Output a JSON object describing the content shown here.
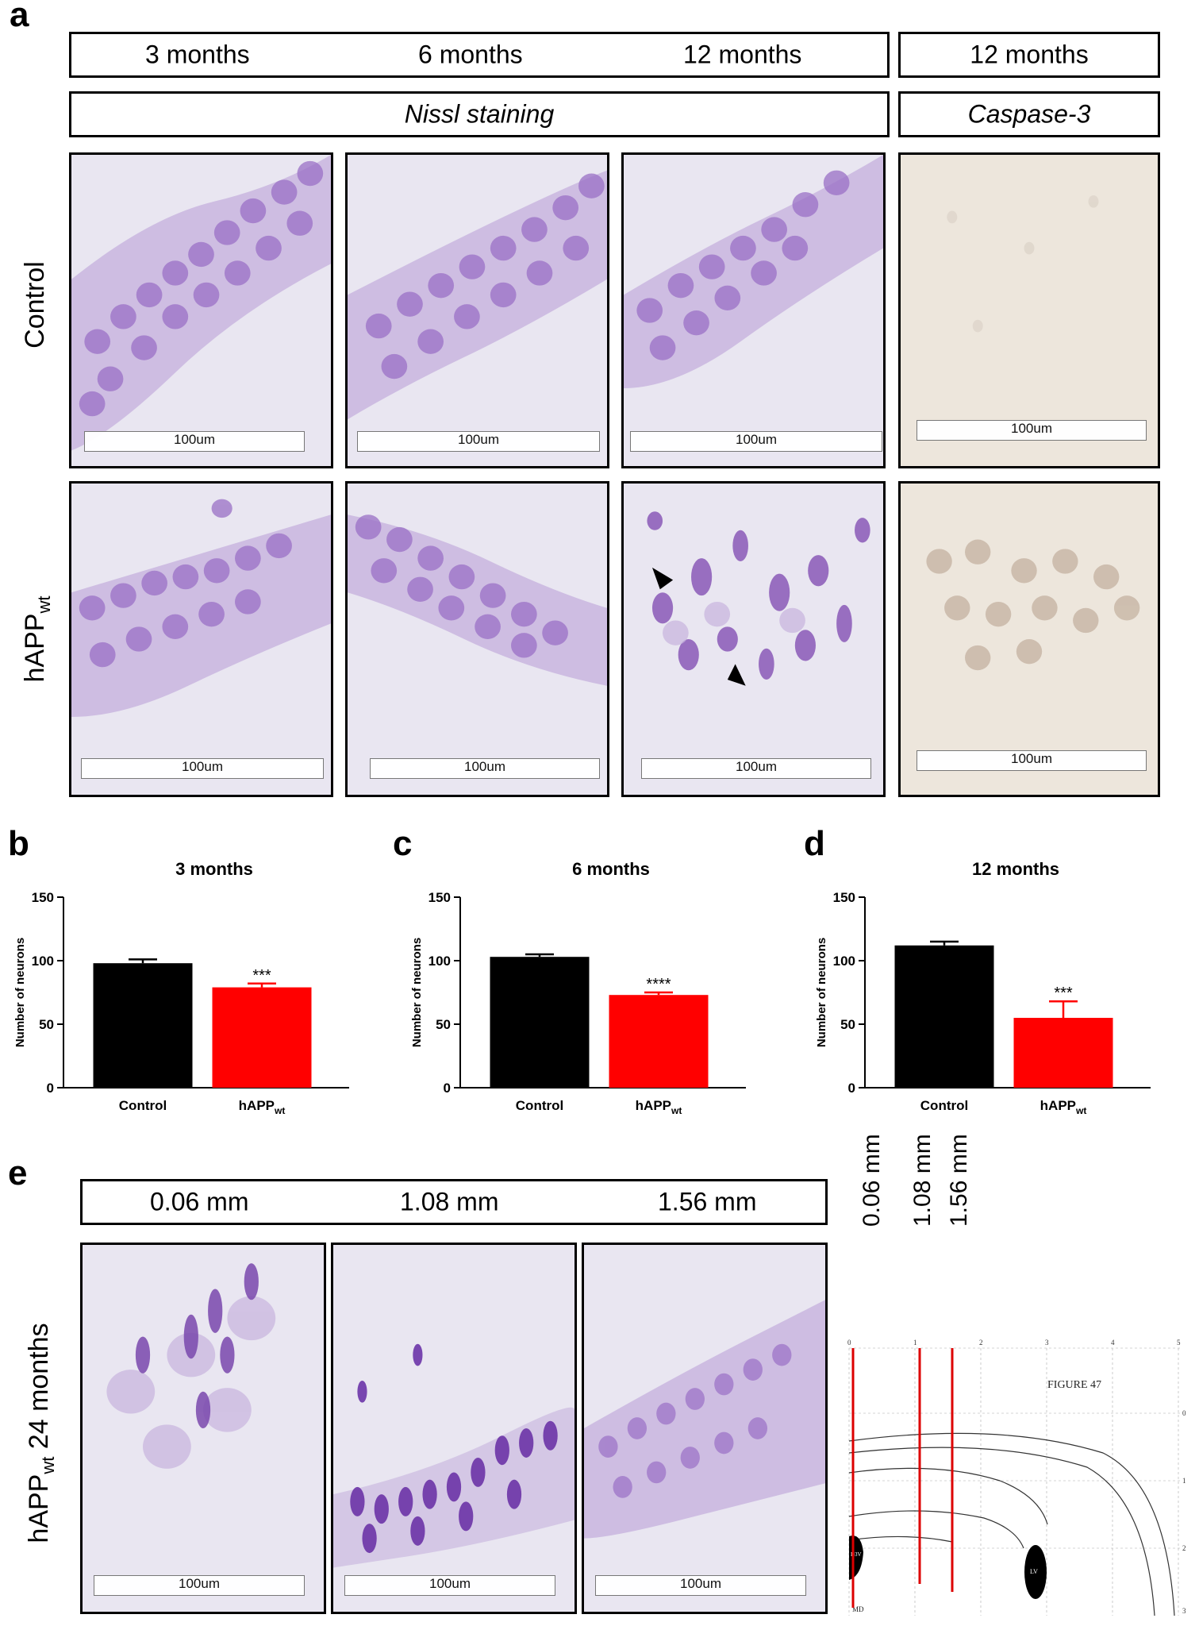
{
  "panel_a": {
    "letter": "a",
    "header_ages": [
      "3 months",
      "6 months",
      "12 months"
    ],
    "header_caspase_age": "12 months",
    "stain_nissl": "Nissl staining",
    "stain_caspase": "Caspase-3",
    "row_control": "Control",
    "row_happ_main": "hAPP",
    "row_happ_sub": "wt",
    "scale_label": "100um"
  },
  "panel_b": {
    "letter": "b"
  },
  "panel_c": {
    "letter": "c"
  },
  "panel_d": {
    "letter": "d"
  },
  "panel_e": {
    "letter": "e",
    "distances": [
      "0.06 mm",
      "1.08 mm",
      "1.56 mm"
    ],
    "row_label_main": "hAPP",
    "row_label_sub": "wt",
    "row_label_rest": " 24 months",
    "scale_label": "100um",
    "atlas_title": "FIGURE 47",
    "atlas_axis_ticks": [
      "0",
      "1",
      "2",
      "3",
      "4",
      "5"
    ],
    "atlas_side_ticks": [
      "0",
      "1",
      "2",
      "3"
    ],
    "atlas_regions": [
      "LV",
      "D3V",
      "MD"
    ]
  },
  "colors": {
    "control_bar": "#000000",
    "happ_bar": "#ff0000",
    "nissl_background": "#e9e6f1",
    "nissl_cell": "#8a5ab8",
    "caspase_background": "#ede6dc",
    "atlas_line": "#dd0000"
  },
  "chart_data": [
    {
      "type": "bar",
      "title": "3 months",
      "ylabel": "Number of neurons",
      "ylim": [
        0,
        150
      ],
      "yticks": [
        "0",
        "50",
        "100",
        "150"
      ],
      "categories": [
        "Control",
        "hAPP"
      ],
      "category_subscripts": [
        "",
        "wt"
      ],
      "values": [
        98,
        79
      ],
      "errors": [
        3,
        3
      ],
      "significance": [
        "",
        "***"
      ]
    },
    {
      "type": "bar",
      "title": "6 months",
      "ylabel": "Number of neurons",
      "ylim": [
        0,
        150
      ],
      "yticks": [
        "0",
        "50",
        "100",
        "150"
      ],
      "categories": [
        "Control",
        "hAPP"
      ],
      "category_subscripts": [
        "",
        "wt"
      ],
      "values": [
        103,
        73
      ],
      "errors": [
        2,
        2
      ],
      "significance": [
        "",
        "****"
      ]
    },
    {
      "type": "bar",
      "title": "12 months",
      "ylabel": "Number of neurons",
      "ylim": [
        0,
        150
      ],
      "yticks": [
        "0",
        "50",
        "100",
        "150"
      ],
      "categories": [
        "Control",
        "hAPP"
      ],
      "category_subscripts": [
        "",
        "wt"
      ],
      "values": [
        112,
        55
      ],
      "errors": [
        3,
        13
      ],
      "significance": [
        "",
        "***"
      ]
    }
  ]
}
